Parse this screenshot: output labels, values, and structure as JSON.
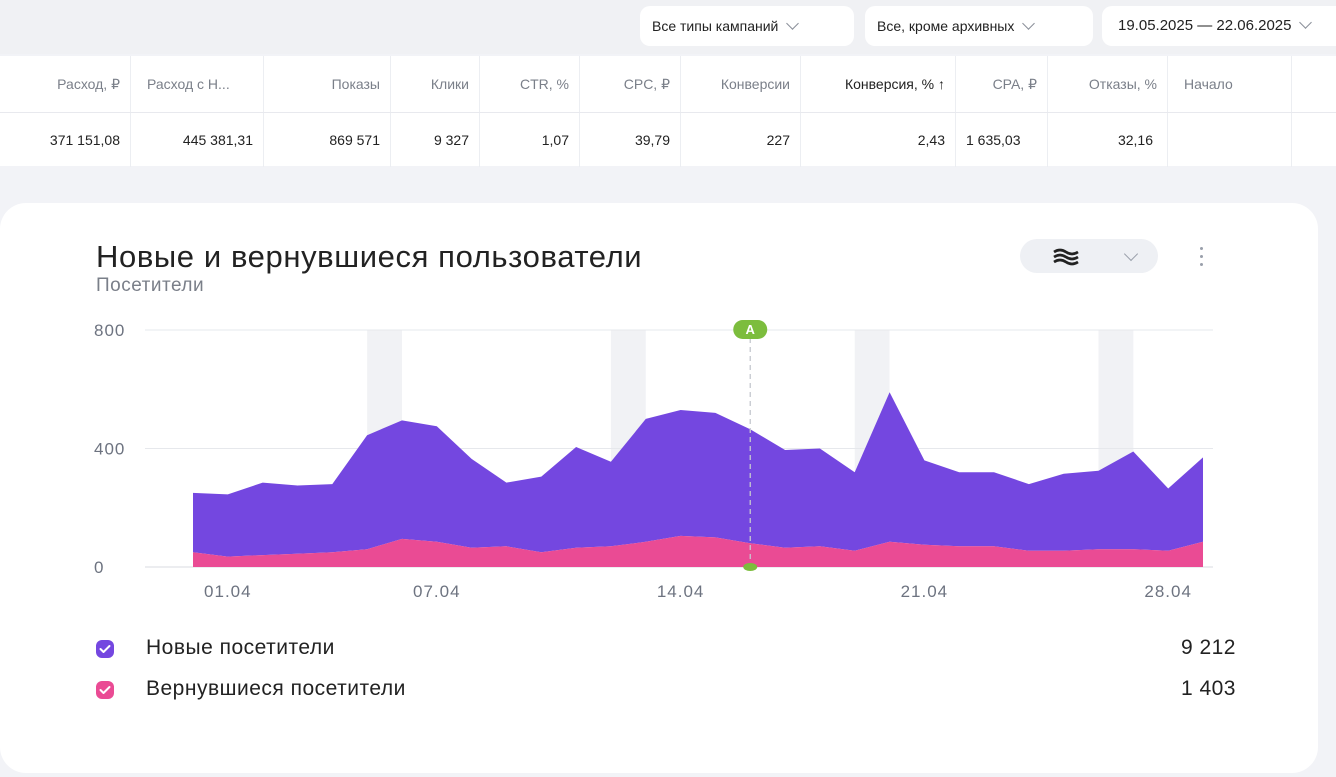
{
  "filters": {
    "campaign_types": "Все типы кампаний",
    "archive_status": "Все, кроме архивных",
    "date_range": "19.05.2025 — 22.06.2025"
  },
  "stats_table": {
    "headers": [
      "Расход, ₽",
      "Расход с Н...",
      "Показы",
      "Клики",
      "CTR, %",
      "CPC, ₽",
      "Конверсии",
      "Конверсия, % ↑",
      "CPA, ₽",
      "Отказы, %",
      "Начало"
    ],
    "values": [
      "371 151,08",
      "445 381,31",
      "869 571",
      "9 327",
      "1,07",
      "39,79",
      "227",
      "2,43",
      "1 635,03",
      "32,16",
      ""
    ]
  },
  "card": {
    "title": "Новые и вернувшиеся пользователи",
    "subtitle": "Посетители",
    "chart_type_icon": "stacked-area-icon",
    "menu_icon": "kebab-icon",
    "annotation_label": "A"
  },
  "chart_data": {
    "type": "area",
    "stacked": true,
    "title": "Новые и вернувшиеся пользователи",
    "ylabel": "Посетители",
    "ylim": [
      0,
      800
    ],
    "y_ticks": [
      "0",
      "400",
      "800"
    ],
    "x_tick_labels": [
      "01.04",
      "07.04",
      "14.04",
      "21.04",
      "28.04"
    ],
    "x": [
      "31.03",
      "01.04",
      "02.04",
      "03.04",
      "04.04",
      "05.04",
      "06.04",
      "07.04",
      "08.04",
      "09.04",
      "10.04",
      "11.04",
      "12.04",
      "13.04",
      "14.04",
      "15.04",
      "16.04",
      "17.04",
      "18.04",
      "19.04",
      "20.04",
      "21.04",
      "22.04",
      "23.04",
      "24.04",
      "25.04",
      "26.04",
      "27.04",
      "28.04",
      "29.04"
    ],
    "weekend_bands": [
      [
        "05.04",
        "06.04"
      ],
      [
        "12.04",
        "13.04"
      ],
      [
        "19.04",
        "20.04"
      ],
      [
        "26.04",
        "27.04"
      ]
    ],
    "annotation": {
      "label": "A",
      "x": "16.04"
    },
    "series": [
      {
        "name": "Новые посетители",
        "color": "#7447e0",
        "total": "9 212",
        "values": [
          200,
          210,
          245,
          230,
          230,
          385,
          400,
          390,
          300,
          215,
          255,
          340,
          285,
          415,
          425,
          420,
          385,
          330,
          330,
          265,
          505,
          285,
          250,
          250,
          225,
          260,
          265,
          330,
          210,
          285
        ]
      },
      {
        "name": "Вернувшиеся посетители",
        "color": "#ea4b94",
        "total": "1 403",
        "values": [
          50,
          35,
          40,
          45,
          50,
          60,
          95,
          85,
          65,
          70,
          50,
          65,
          70,
          85,
          105,
          100,
          80,
          65,
          70,
          55,
          85,
          75,
          70,
          70,
          55,
          55,
          60,
          60,
          55,
          85
        ]
      }
    ],
    "grid": true,
    "legend_position": "bottom"
  },
  "colors": {
    "new_visitors": "#7447e0",
    "returning_visitors": "#ea4b94",
    "annotation": "#7cbd3d",
    "weekend_band": "#f1f2f5"
  }
}
